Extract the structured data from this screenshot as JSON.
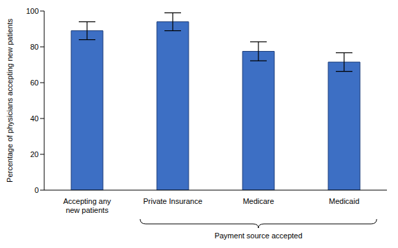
{
  "chart_data": {
    "type": "bar",
    "categories": [
      "Accepting any new patients",
      "Private Insurance",
      "Medicare",
      "Medicaid"
    ],
    "values": [
      89,
      94,
      77.5,
      71.5
    ],
    "errors": [
      5,
      5,
      5.3,
      5.2
    ],
    "color": "#3d6fc4",
    "ylabel": "Percentage of physicians accepting new patients",
    "ylim": [
      0,
      100
    ],
    "yticks": [
      0,
      20,
      40,
      60,
      80,
      100
    ],
    "grid": false,
    "annotation": {
      "text": "Payment source accepted",
      "span": [
        "Private Insurance",
        "Medicaid"
      ]
    }
  }
}
